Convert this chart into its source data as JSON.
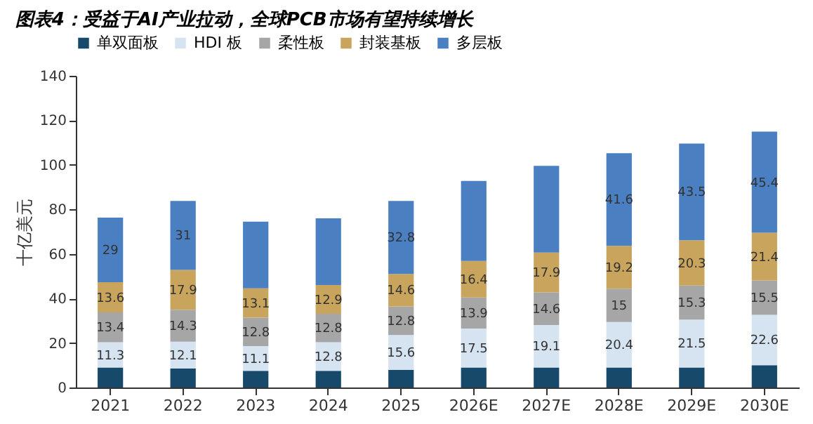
{
  "chart_data": {
    "type": "bar",
    "title": "图表4：受益于AI产业拉动，全球PCB市场有望持续增长",
    "ylabel": "十亿美元",
    "stacked": true,
    "categories": [
      "2021",
      "2022",
      "2023",
      "2024",
      "2025",
      "2026E",
      "2027E",
      "2028E",
      "2029E",
      "2030E"
    ],
    "series": [
      {
        "name": "单双面板",
        "color": "#17496b",
        "values": [
          9,
          8.5,
          7.5,
          7.5,
          8,
          9,
          9,
          9,
          9,
          10
        ],
        "value_labels": [
          null,
          null,
          null,
          null,
          null,
          null,
          null,
          null,
          null,
          null
        ]
      },
      {
        "name": "HDI 板",
        "color": "#d6e4f2",
        "values": [
          11.3,
          12.1,
          11.1,
          12.8,
          15.6,
          17.5,
          19.1,
          20.4,
          21.5,
          22.6
        ],
        "value_labels": [
          "11.3",
          "12.1",
          "11.1",
          "12.8",
          "15.6",
          "17.5",
          "19.1",
          "20.4",
          "21.5",
          "22.6"
        ]
      },
      {
        "name": "柔性板",
        "color": "#a6a6a6",
        "values": [
          13.4,
          14.3,
          12.8,
          12.8,
          12.8,
          13.9,
          14.6,
          15,
          15.3,
          15.5
        ],
        "value_labels": [
          "13.4",
          "14.3",
          "12.8",
          "12.8",
          "12.8",
          "13.9",
          "14.6",
          "15",
          "15.3",
          "15.5"
        ]
      },
      {
        "name": "封装基板",
        "color": "#c9a45c",
        "values": [
          13.6,
          17.9,
          13.1,
          12.9,
          14.6,
          16.4,
          17.9,
          19.2,
          20.3,
          21.4
        ],
        "value_labels": [
          "13.6",
          "17.9",
          "13.1",
          "12.9",
          "14.6",
          "16.4",
          "17.9",
          "19.2",
          "20.3",
          "21.4"
        ]
      },
      {
        "name": "多层板",
        "color": "#4a7fc1",
        "values": [
          29,
          31,
          30,
          30,
          32.8,
          36,
          39,
          41.6,
          43.5,
          45.4
        ],
        "value_labels": [
          "29",
          "31",
          null,
          null,
          "32.8",
          null,
          null,
          "41.6",
          "43.5",
          "45.4"
        ]
      }
    ],
    "ylim": [
      0,
      140
    ],
    "yticks": [
      0,
      20,
      40,
      60,
      80,
      100,
      120,
      140
    ],
    "grid": false,
    "legend": "top"
  }
}
